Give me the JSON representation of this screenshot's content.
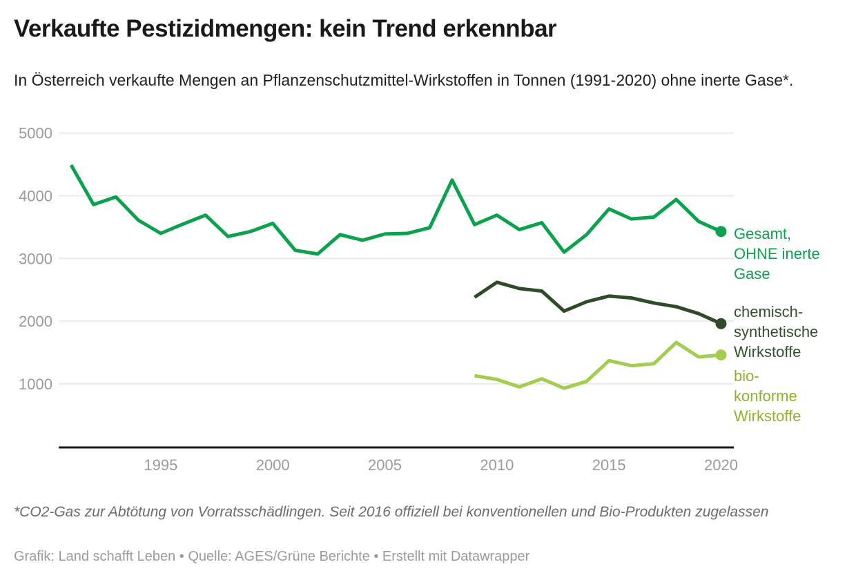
{
  "header": {
    "title": "Verkaufte Pestizidmengen: kein Trend erkennbar",
    "subtitle": "In Österreich verkaufte Mengen an Pflanzenschutzmittel-Wirkstoffen in Tonnen (1991-2020) ohne inerte Gase*."
  },
  "footer": {
    "note": "*CO2-Gas zur Abtötung von Vorratsschädlingen. Seit 2016 offiziell bei konventionellen und Bio-Produkten zugelassen",
    "credits": "Grafik: Land schafft Leben • Quelle: AGES/Grüne Berichte • Erstellt mit Datawrapper"
  },
  "colors": {
    "background": "#ffffff",
    "title_text": "#1a1a1a",
    "grid": "#e9e9e9",
    "axis": "#181818",
    "tick_text": "#9a9a9a",
    "total_green": "#0ba14d",
    "chemical_dark_green": "#2f4b27",
    "bio_light_green": "#a4cc4e",
    "bio_label_green": "#8cb32a"
  },
  "chart_data": {
    "type": "line",
    "title": "Verkaufte Pestizidmengen: kein Trend erkennbar",
    "subtitle": "In Österreich verkaufte Mengen an Pflanzenschutzmittel-Wirkstoffen in Tonnen (1991-2020) ohne inerte Gase*.",
    "unit": "Tonnen",
    "xlim": [
      1991,
      2020
    ],
    "ylim": [
      0,
      5000
    ],
    "xticks": [
      1995,
      2000,
      2005,
      2010,
      2015,
      2020
    ],
    "yticks": [
      1000,
      2000,
      3000,
      4000,
      5000
    ],
    "grid": true,
    "legend_position": "right-of-line-ends",
    "series": [
      {
        "name": "Gesamt, OHNE inerte Gase",
        "label_lines": [
          "Gesamt,",
          "OHNE inerte",
          "Gase"
        ],
        "color": "#0ba14d",
        "label_color": "#0ba14d",
        "start_year": 1991,
        "values": [
          4490,
          3860,
          3980,
          3610,
          3400,
          3550,
          3690,
          3350,
          3430,
          3560,
          3130,
          3070,
          3380,
          3290,
          3390,
          3400,
          3490,
          4250,
          3540,
          3690,
          3460,
          3570,
          3100,
          3380,
          3790,
          3630,
          3660,
          3940,
          3590,
          3430
        ]
      },
      {
        "name": "chemisch-synthetische Wirkstoffe",
        "label_lines": [
          "chemisch-",
          "synthetische",
          "Wirkstoffe"
        ],
        "color": "#2f4b27",
        "label_color": "#33502b",
        "start_year": 2009,
        "values": [
          2380,
          2620,
          2520,
          2480,
          2160,
          2310,
          2400,
          2370,
          2290,
          2230,
          2120,
          1960
        ]
      },
      {
        "name": "bio-konforme Wirkstoffe",
        "label_lines": [
          "bio-",
          "konforme",
          "Wirkstoffe"
        ],
        "color": "#a4cc4e",
        "label_color": "#8cb32a",
        "start_year": 2009,
        "values": [
          1130,
          1070,
          950,
          1080,
          930,
          1040,
          1370,
          1290,
          1320,
          1660,
          1430,
          1460
        ]
      }
    ]
  }
}
